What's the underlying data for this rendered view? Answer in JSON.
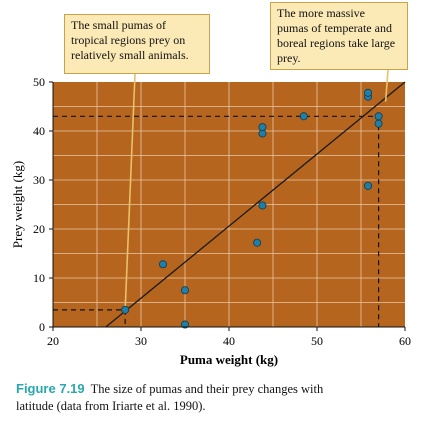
{
  "chart_data": {
    "type": "scatter",
    "xlabel": "Puma weight (kg)",
    "ylabel": "Prey weight (kg)",
    "xlim": [
      20,
      60
    ],
    "ylim": [
      0,
      50
    ],
    "xticks": [
      20,
      30,
      40,
      50,
      60
    ],
    "yticks": [
      0,
      10,
      20,
      30,
      40,
      50
    ],
    "grid": true,
    "colors": {
      "background": "#b5651d",
      "grid": "#e8c9a8",
      "points": "#1f7fa6",
      "line": "#1a1a1a"
    },
    "series": [
      {
        "points": [
          {
            "x": 28.2,
            "y": 3.5
          },
          {
            "x": 32.5,
            "y": 12.8
          },
          {
            "x": 35.0,
            "y": 7.5
          },
          {
            "x": 35.0,
            "y": 0.5
          },
          {
            "x": 43.2,
            "y": 17.2
          },
          {
            "x": 43.8,
            "y": 24.8
          },
          {
            "x": 43.8,
            "y": 39.5
          },
          {
            "x": 43.8,
            "y": 40.8
          },
          {
            "x": 48.5,
            "y": 43.0
          },
          {
            "x": 55.8,
            "y": 47.0
          },
          {
            "x": 55.8,
            "y": 47.8
          },
          {
            "x": 55.8,
            "y": 28.8
          },
          {
            "x": 57.0,
            "y": 43.0
          },
          {
            "x": 57.0,
            "y": 41.5
          }
        ]
      }
    ],
    "trendline": {
      "from": [
        26.0,
        0
      ],
      "to": [
        60.0,
        50
      ]
    },
    "reference_lines": [
      {
        "x": 28.2,
        "y": 3.5
      },
      {
        "x": 57.0,
        "y": 43.0
      }
    ]
  },
  "annotations": {
    "left": [
      "The small pumas of",
      "tropical regions prey on",
      "relatively small animals."
    ],
    "right": [
      "The more massive",
      "pumas of temperate and",
      "boreal regions take large",
      "prey."
    ]
  },
  "caption": {
    "figure_number": "Figure 7.19",
    "line1": "The size of pumas and their prey changes with",
    "line2": "latitude (data from Iriarte et al. 1990)."
  }
}
